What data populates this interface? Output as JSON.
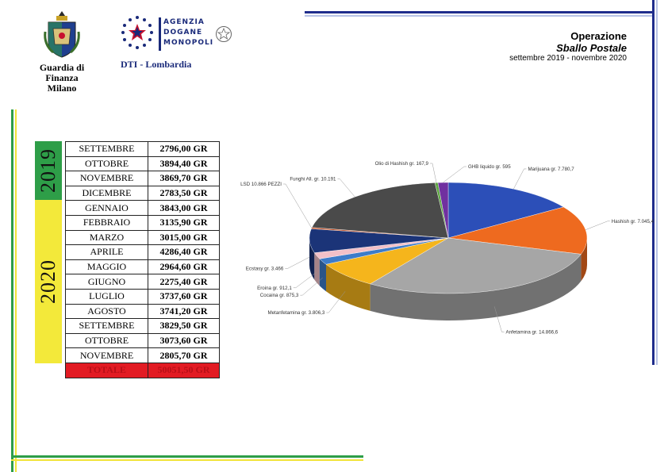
{
  "header": {
    "gdf_name_line1": "Guardia di Finanza",
    "gdf_name_line2": "Milano",
    "adm_line1": "AGENZIA",
    "adm_line2": "DOGANE",
    "adm_line3": "MONOPOLI",
    "adm_sub": "DTI - Lombardia"
  },
  "title": {
    "line1": "Operazione",
    "line2": "Sballo Postale",
    "line3": "settembre 2019 - novembre 2020"
  },
  "table": {
    "year_2019": "2019",
    "year_2020": "2020",
    "rows": [
      {
        "month": "SETTEMBRE",
        "value": "2796,00 GR"
      },
      {
        "month": "OTTOBRE",
        "value": "3894,40 GR"
      },
      {
        "month": "NOVEMBRE",
        "value": "3869,70 GR"
      },
      {
        "month": "DICEMBRE",
        "value": "2783,50 GR"
      },
      {
        "month": "GENNAIO",
        "value": "3843,00 GR"
      },
      {
        "month": "FEBBRAIO",
        "value": "3135,90 GR"
      },
      {
        "month": "MARZO",
        "value": "3015,00 GR"
      },
      {
        "month": "APRILE",
        "value": "4286,40 GR"
      },
      {
        "month": "MAGGIO",
        "value": "2964,60 GR"
      },
      {
        "month": "GIUGNO",
        "value": "2275,40 GR"
      },
      {
        "month": "LUGLIO",
        "value": "3737,60 GR"
      },
      {
        "month": "AGOSTO",
        "value": "3741,20 GR"
      },
      {
        "month": "SETTEMBRE",
        "value": "3829,50 GR"
      },
      {
        "month": "OTTOBRE",
        "value": "3073,60 GR"
      },
      {
        "month": "NOVEMBRE",
        "value": "2805,70 GR"
      }
    ],
    "total_label": "TOTALE",
    "total_value": "50051,50 GR"
  },
  "chart_data": {
    "type": "pie",
    "title": "",
    "slices": [
      {
        "name": "Marijuana",
        "value": 7780.7,
        "label": "Marijuana gr. 7.780,7",
        "color": "#2c4fb8"
      },
      {
        "name": "Hashish",
        "value": 7045.4,
        "label": "Hashish gr. 7.045,4",
        "color": "#ee6a1f"
      },
      {
        "name": "Anfetamina",
        "value": 14866.6,
        "label": "Anfetamina gr. 14.866,6",
        "color": "#a6a6a6"
      },
      {
        "name": "Metanfetamina",
        "value": 3806.3,
        "label": "Metanfetamina gr. 3.806,3",
        "color": "#f5b51c"
      },
      {
        "name": "Cocaina",
        "value": 875.3,
        "label": "Cocaina gr. 875,3",
        "color": "#3d7cc9"
      },
      {
        "name": "Eroina",
        "value": 912.1,
        "label": "Eroina gr. 912,1",
        "color": "#f2c0c8"
      },
      {
        "name": "Ecstasy",
        "value": 3466,
        "label": "Ecstasy gr. 3.466",
        "color": "#1b3478"
      },
      {
        "name": "LSD",
        "value": 200,
        "label": "LSD 10.866 PEZZI",
        "color": "#c24b1e"
      },
      {
        "name": "Funghi Allucinogeni",
        "value": 10191,
        "label": "Funghi All. gr. 10.191",
        "color": "#4a4a4a"
      },
      {
        "name": "Olio di Hashish",
        "value": 167.9,
        "label": "Olio di Hashish gr. 167,9",
        "color": "#5da540"
      },
      {
        "name": "GHB liquido",
        "value": 595,
        "label": "GHB liquido gr. 595",
        "color": "#7030a0"
      }
    ]
  }
}
